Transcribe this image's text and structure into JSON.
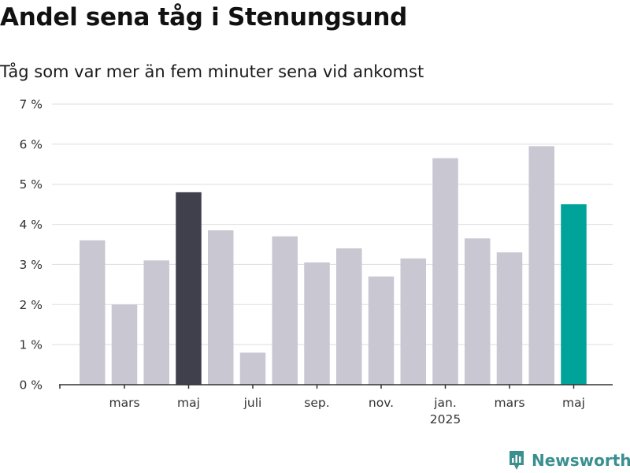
{
  "header": {
    "title": "Andel sena tåg i Stenungsund",
    "subtitle": "Tåg som var mer än fem minuter sena vid ankomst"
  },
  "brand": {
    "name": "Newsworthy",
    "icon": "newsworthy-logo-icon",
    "color": "#3a8f8f"
  },
  "chart_data": {
    "type": "bar",
    "title": "Andel sena tåg i Stenungsund",
    "subtitle": "Tåg som var mer än fem minuter sena vid ankomst",
    "xlabel": "",
    "ylabel": "",
    "ylim": [
      0,
      7
    ],
    "y_ticks": [
      0,
      1,
      2,
      3,
      4,
      5,
      6,
      7
    ],
    "y_tick_labels": [
      "0 %",
      "1 %",
      "2 %",
      "3 %",
      "4 %",
      "5 %",
      "6 %",
      "7 %"
    ],
    "grid": "horizontal",
    "periods": [
      "2024-02",
      "2024-03",
      "2024-04",
      "2024-05",
      "2024-06",
      "2024-07",
      "2024-08",
      "2024-09",
      "2024-10",
      "2024-11",
      "2024-12",
      "2025-01",
      "2025-02",
      "2025-03",
      "2025-04",
      "2025-05"
    ],
    "values": [
      3.6,
      2.0,
      3.1,
      4.8,
      3.85,
      0.8,
      3.7,
      3.05,
      3.4,
      2.7,
      3.15,
      5.65,
      3.65,
      3.3,
      5.95,
      4.5
    ],
    "x_tick_labels": [
      {
        "period": "2024-03",
        "label": "mars",
        "sublabel": ""
      },
      {
        "period": "2024-05",
        "label": "maj",
        "sublabel": ""
      },
      {
        "period": "2024-07",
        "label": "juli",
        "sublabel": ""
      },
      {
        "period": "2024-09",
        "label": "sep.",
        "sublabel": ""
      },
      {
        "period": "2024-11",
        "label": "nov.",
        "sublabel": ""
      },
      {
        "period": "2025-01",
        "label": "jan.",
        "sublabel": "2025"
      },
      {
        "period": "2025-03",
        "label": "mars",
        "sublabel": ""
      },
      {
        "period": "2025-05",
        "label": "maj",
        "sublabel": ""
      }
    ],
    "colors": {
      "default": "#c8c7d2",
      "highlight": "#403f4c",
      "latest": "#00a39a",
      "grid": "#dddddd",
      "axis": "#333333"
    },
    "highlight_periods": [
      "2024-05"
    ],
    "latest_period": "2025-05"
  }
}
